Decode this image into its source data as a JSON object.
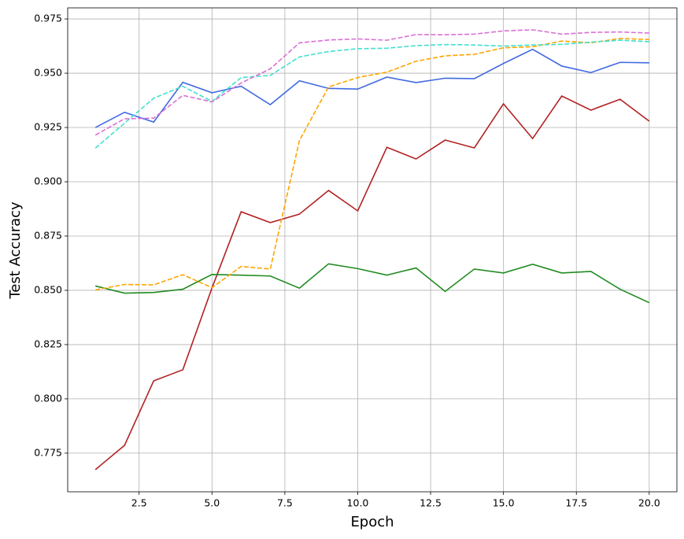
{
  "chart_data": {
    "type": "line",
    "xlabel": "Epoch",
    "ylabel": "Test Accuracy",
    "x": [
      1,
      2,
      3,
      4,
      5,
      6,
      7,
      8,
      9,
      10,
      11,
      12,
      13,
      14,
      15,
      16,
      17,
      18,
      19,
      20
    ],
    "series": [
      {
        "color": "#b22222",
        "dashed": false,
        "values": [
          0.7674,
          0.7786,
          0.8083,
          0.8134,
          0.8511,
          0.8862,
          0.8812,
          0.8851,
          0.896,
          0.8866,
          0.9159,
          0.9105,
          0.9192,
          0.9156,
          0.9359,
          0.9199,
          0.9395,
          0.933,
          0.938,
          0.9279
        ]
      },
      {
        "color": "#228b22",
        "dashed": false,
        "values": [
          0.852,
          0.8487,
          0.849,
          0.8505,
          0.8573,
          0.857,
          0.8566,
          0.851,
          0.8622,
          0.86,
          0.857,
          0.8603,
          0.8495,
          0.8598,
          0.858,
          0.862,
          0.858,
          0.8587,
          0.8505,
          0.8443
        ]
      },
      {
        "color": "#4169e1",
        "dashed": false,
        "values": [
          0.925,
          0.932,
          0.9275,
          0.9458,
          0.941,
          0.944,
          0.9355,
          0.9465,
          0.943,
          0.9427,
          0.9482,
          0.9457,
          0.9477,
          0.9475,
          0.9545,
          0.961,
          0.9533,
          0.9503,
          0.955,
          0.9548
        ]
      },
      {
        "color": "#ffa500",
        "dashed": true,
        "values": [
          0.8502,
          0.8527,
          0.8525,
          0.8572,
          0.8512,
          0.861,
          0.8598,
          0.919,
          0.9437,
          0.948,
          0.9505,
          0.9555,
          0.958,
          0.9587,
          0.9617,
          0.9622,
          0.9648,
          0.964,
          0.966,
          0.9655
        ]
      },
      {
        "color": "#40e0d0",
        "dashed": true,
        "values": [
          0.9155,
          0.927,
          0.9385,
          0.944,
          0.937,
          0.948,
          0.949,
          0.9575,
          0.96,
          0.9613,
          0.9615,
          0.9627,
          0.9632,
          0.963,
          0.9625,
          0.963,
          0.9633,
          0.9643,
          0.9652,
          0.9645
        ]
      },
      {
        "color": "#da70d6",
        "dashed": true,
        "values": [
          0.9215,
          0.929,
          0.9293,
          0.9398,
          0.9368,
          0.9455,
          0.952,
          0.964,
          0.9653,
          0.9658,
          0.9652,
          0.9678,
          0.9677,
          0.968,
          0.9695,
          0.97,
          0.968,
          0.9688,
          0.969,
          0.9685
        ]
      }
    ],
    "xlim": [
      0.05,
      20.95
    ],
    "xticks": [
      2.5,
      {
        "value": 5,
        "label": "5.0"
      },
      7.5,
      {
        "value": 10,
        "label": "10.0"
      },
      12.5,
      {
        "value": 15,
        "label": "15.0"
      },
      17.5,
      {
        "value": 20,
        "label": "20.0"
      }
    ],
    "ylim": [
      0.7572,
      0.9801
    ],
    "yticks": [
      0.775,
      {
        "value": 0.8,
        "label": "0.800"
      },
      0.825,
      {
        "value": 0.85,
        "label": "0.850"
      },
      0.875,
      {
        "value": 0.9,
        "label": "0.900"
      },
      0.925,
      {
        "value": 0.95,
        "label": "0.950"
      },
      0.975
    ],
    "grid": true
  }
}
